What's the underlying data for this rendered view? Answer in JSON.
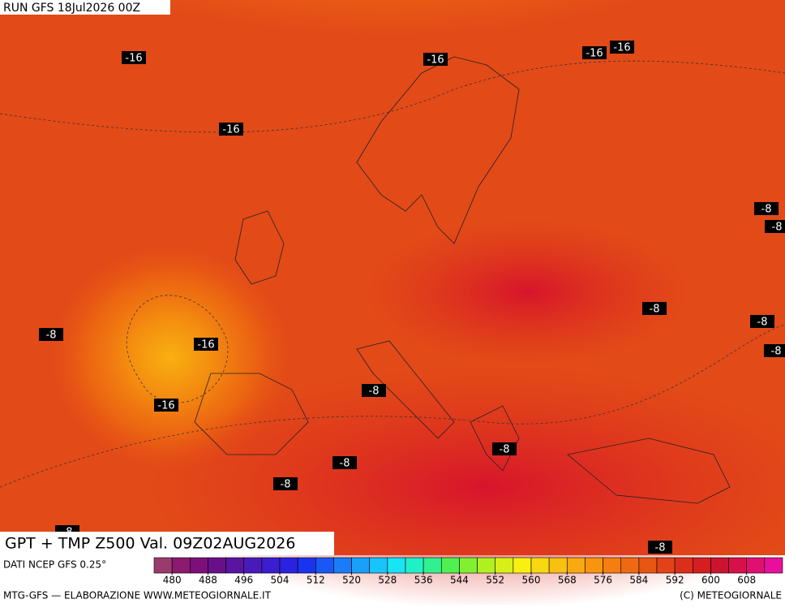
{
  "header": {
    "run": "RUN GFS 18Jul2026 00Z"
  },
  "title": "GPT + TMP Z500 Val. 09Z02AUG2026",
  "source": "DATI NCEP GFS 0.25°",
  "footer": {
    "left": "MTG-GFS — ELABORAZIONE WWW.METEOGIORNALE.IT",
    "right": "(C) METEOGIORNALE"
  },
  "map": {
    "labels": [
      "-16",
      "-16",
      "-16",
      "-16",
      "-16",
      "-8",
      "-8",
      "-8",
      "-16",
      "-16",
      "-8",
      "-8",
      "-8",
      "-8",
      "-8",
      "-8",
      "-8",
      "-8",
      "-8"
    ]
  },
  "colorbar": {
    "range": [
      476,
      616
    ],
    "ticks": [
      480,
      488,
      496,
      504,
      512,
      520,
      528,
      536,
      544,
      552,
      560,
      568,
      576,
      584,
      592,
      600,
      608
    ],
    "colors": [
      "#9a3b6e",
      "#8c1a6e",
      "#7d0f7a",
      "#6a0f8a",
      "#5a14a0",
      "#4a1ab8",
      "#3a1ed0",
      "#2a22e0",
      "#1a34ee",
      "#1858f4",
      "#1a7cf8",
      "#1aa0fa",
      "#18c4fa",
      "#18e4f4",
      "#20f0c8",
      "#30f090",
      "#50f050",
      "#80f030",
      "#b0f020",
      "#d8f018",
      "#f8f010",
      "#f8d810",
      "#f8c010",
      "#f8a810",
      "#f89410",
      "#f47e10",
      "#ee6a10",
      "#e85614",
      "#e24218",
      "#dc2e1c",
      "#d41e20",
      "#cc1430",
      "#d8104a",
      "#e01070",
      "#e8109a"
    ]
  }
}
